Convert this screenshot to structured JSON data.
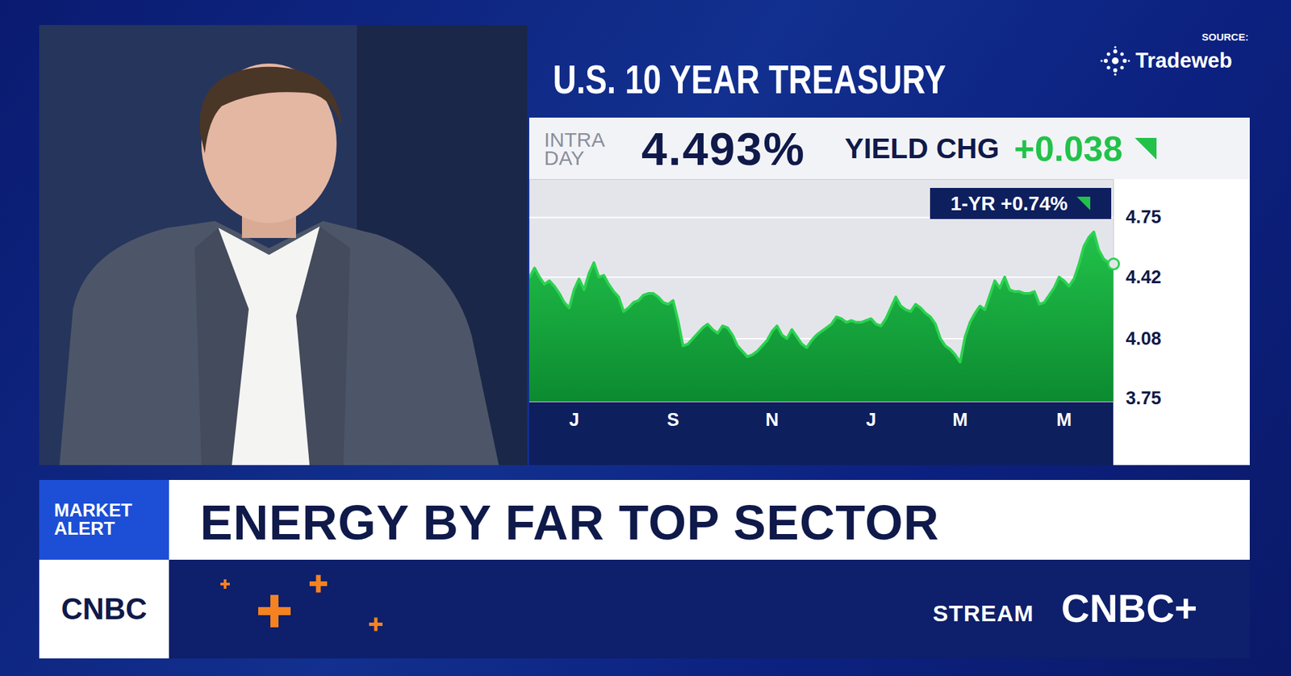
{
  "chart_data": {
    "type": "area",
    "title": "U.S. 10 YEAR TREASURY",
    "categories": [
      null,
      null,
      null,
      null,
      null,
      null,
      null,
      null,
      null,
      "J",
      null,
      null,
      null,
      null,
      null,
      null,
      null,
      null,
      null,
      null,
      null,
      null,
      null,
      null,
      null,
      null,
      null,
      null,
      null,
      "S",
      null,
      null,
      null,
      null,
      null,
      null,
      null,
      null,
      null,
      null,
      null,
      null,
      null,
      null,
      null,
      null,
      null,
      null,
      null,
      "N",
      null,
      null,
      null,
      null,
      null,
      null,
      null,
      null,
      null,
      null,
      null,
      null,
      null,
      null,
      null,
      null,
      null,
      null,
      null,
      "J",
      null,
      null,
      null,
      null,
      null,
      null,
      null,
      null,
      null,
      null,
      null,
      null,
      null,
      null,
      null,
      null,
      null,
      "M",
      null,
      null,
      null,
      null,
      null,
      null,
      null,
      null,
      null,
      null,
      null,
      null,
      null,
      null,
      null,
      null,
      null,
      null,
      null,
      null,
      "M",
      null,
      null,
      null,
      null,
      null,
      null,
      null,
      null,
      null,
      null
    ],
    "values": [
      4.42,
      4.47,
      4.42,
      4.38,
      4.4,
      4.37,
      4.33,
      4.28,
      4.25,
      4.35,
      4.41,
      4.35,
      4.44,
      4.5,
      4.42,
      4.43,
      4.38,
      4.34,
      4.31,
      4.23,
      4.25,
      4.28,
      4.29,
      4.32,
      4.33,
      4.33,
      4.31,
      4.28,
      4.27,
      4.29,
      4.18,
      4.04,
      4.05,
      4.08,
      4.11,
      4.14,
      4.16,
      4.13,
      4.11,
      4.15,
      4.14,
      4.1,
      4.04,
      4.01,
      3.98,
      3.99,
      4.01,
      4.04,
      4.07,
      4.12,
      4.15,
      4.1,
      4.08,
      4.13,
      4.09,
      4.05,
      4.03,
      4.07,
      4.1,
      4.12,
      4.14,
      4.16,
      4.2,
      4.19,
      4.17,
      4.18,
      4.17,
      4.17,
      4.18,
      4.19,
      4.16,
      4.15,
      4.19,
      4.25,
      4.31,
      4.26,
      4.24,
      4.23,
      4.27,
      4.25,
      4.22,
      4.2,
      4.16,
      4.08,
      4.04,
      4.02,
      3.99,
      3.95,
      4.09,
      4.17,
      4.22,
      4.26,
      4.24,
      4.32,
      4.4,
      4.36,
      4.42,
      4.35,
      4.34,
      4.34,
      4.33,
      4.33,
      4.34,
      4.27,
      4.28,
      4.32,
      4.36,
      4.42,
      4.4,
      4.37,
      4.41,
      4.49,
      4.59,
      4.64,
      4.67,
      4.57,
      4.52,
      4.5,
      4.493
    ],
    "color": "#2bd24f",
    "marker": "end_circle",
    "ylim": [
      3.73,
      4.96
    ],
    "yticks": [
      3.75,
      4.08,
      4.42,
      4.75
    ],
    "grid": true,
    "annotations": [
      "1-YR +0.74%"
    ]
  },
  "screen": {
    "source_label": "SOURCE:",
    "source": "Tradeweb",
    "quote": {
      "label": "INTRA DAY",
      "value": "4.493%",
      "change_label": "YIELD CHG",
      "change": "+0.038"
    },
    "alert_label": "MARKET ALERT",
    "headline": "ENERGY BY FAR TOP SECTOR",
    "network": "CNBC",
    "stream_label": "STREAM",
    "stream_brand": "CNBC+"
  }
}
